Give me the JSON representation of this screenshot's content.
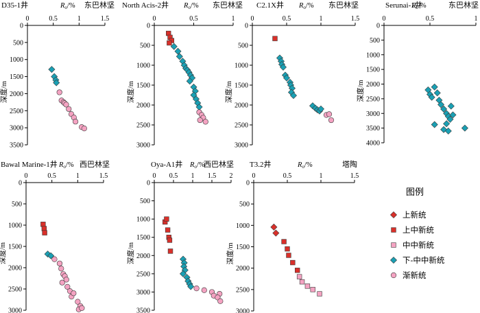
{
  "figure": {
    "depth_label": "深度/m",
    "ro_label": "R",
    "ro_sub": "o",
    "ro_unit": "/%"
  },
  "series_styles": [
    {
      "name": "上新统",
      "marker": "diamond",
      "color": "#d9302a"
    },
    {
      "name": "上中新统",
      "marker": "square",
      "color": "#d9302a"
    },
    {
      "name": "中中新统",
      "marker": "square",
      "color": "#f4a3c2"
    },
    {
      "name": "下-中中新统",
      "marker": "diamond",
      "color": "#1aa0b4"
    },
    {
      "name": "渐新统",
      "marker": "circle",
      "color": "#f4a3c2"
    }
  ],
  "legend": {
    "title": "图例",
    "items": [
      "上新统",
      "上中新统",
      "中中新统",
      "下-中中新统",
      "渐新统"
    ]
  },
  "chart_data": [
    {
      "type": "scatter",
      "title": "D35-1井",
      "region": "东巴林坚",
      "xlabel": "Ro/%",
      "ylabel": "深度/m",
      "xlim": [
        0,
        1.5
      ],
      "x_ticks": [
        "0",
        "0.5",
        "1",
        "1.5"
      ],
      "ylim": [
        0,
        3500
      ],
      "y_ticks": [
        "0",
        "500",
        "1000",
        "1500",
        "2000",
        "2500",
        "3000",
        "3500"
      ],
      "series": [
        {
          "name": "下-中中新统",
          "points": [
            [
              0.47,
              1290
            ],
            [
              0.52,
              1500
            ],
            [
              0.55,
              1600
            ],
            [
              0.56,
              1680
            ]
          ]
        },
        {
          "name": "渐新统",
          "points": [
            [
              0.62,
              1960
            ],
            [
              0.66,
              2200
            ],
            [
              0.7,
              2250
            ],
            [
              0.72,
              2280
            ],
            [
              0.75,
              2320
            ],
            [
              0.8,
              2450
            ],
            [
              0.85,
              2600
            ],
            [
              0.9,
              2700
            ],
            [
              0.93,
              2820
            ],
            [
              1.05,
              2980
            ],
            [
              1.1,
              3020
            ]
          ]
        }
      ]
    },
    {
      "type": "scatter",
      "title": "North Acis-2井",
      "region": "东巴林坚",
      "xlabel": "Ro/%",
      "ylabel": "深度/m",
      "xlim": [
        0,
        1
      ],
      "x_ticks": [
        "0",
        "0.5",
        "1"
      ],
      "ylim": [
        0,
        3000
      ],
      "y_ticks": [
        "0",
        "500",
        "1000",
        "1500",
        "2000",
        "2500",
        "3000"
      ],
      "series": [
        {
          "name": "上中新统",
          "points": [
            [
              0.18,
              200
            ],
            [
              0.2,
              300
            ],
            [
              0.22,
              380
            ],
            [
              0.19,
              440
            ]
          ]
        },
        {
          "name": "下-中中新统",
          "points": [
            [
              0.25,
              530
            ],
            [
              0.3,
              650
            ],
            [
              0.32,
              780
            ],
            [
              0.36,
              900
            ],
            [
              0.38,
              1000
            ],
            [
              0.4,
              1080
            ],
            [
              0.42,
              1120
            ],
            [
              0.44,
              1180
            ],
            [
              0.46,
              1250
            ],
            [
              0.48,
              1320
            ],
            [
              0.45,
              1400
            ],
            [
              0.5,
              1550
            ],
            [
              0.52,
              1650
            ],
            [
              0.5,
              1750
            ],
            [
              0.53,
              1850
            ],
            [
              0.55,
              1950
            ],
            [
              0.57,
              2050
            ]
          ]
        },
        {
          "name": "渐新统",
          "points": [
            [
              0.57,
              2180
            ],
            [
              0.6,
              2250
            ],
            [
              0.62,
              2320
            ],
            [
              0.58,
              2380
            ],
            [
              0.65,
              2420
            ]
          ]
        }
      ]
    },
    {
      "type": "scatter",
      "title": "C2.1X井",
      "region": "东巴林坚",
      "xlabel": "Ro/%",
      "ylabel": "深度/m",
      "xlim": [
        0,
        1.5
      ],
      "x_ticks": [
        "0",
        "0.5",
        "1",
        "1.5"
      ],
      "ylim": [
        0,
        3000
      ],
      "y_ticks": [
        "0",
        "500",
        "1000",
        "1500",
        "2000",
        "2500",
        "3000"
      ],
      "series": [
        {
          "name": "上中新统",
          "points": [
            [
              0.33,
              330
            ]
          ]
        },
        {
          "name": "下-中中新统",
          "points": [
            [
              0.4,
              820
            ],
            [
              0.42,
              900
            ],
            [
              0.43,
              980
            ],
            [
              0.45,
              1050
            ],
            [
              0.48,
              1250
            ],
            [
              0.5,
              1320
            ],
            [
              0.55,
              1430
            ],
            [
              0.56,
              1500
            ],
            [
              0.58,
              1580
            ],
            [
              0.57,
              1680
            ],
            [
              0.6,
              1760
            ],
            [
              0.88,
              2020
            ],
            [
              0.92,
              2080
            ],
            [
              0.95,
              2120
            ],
            [
              0.98,
              2150
            ],
            [
              1.0,
              2100
            ]
          ]
        },
        {
          "name": "渐新统",
          "points": [
            [
              1.08,
              2250
            ],
            [
              1.12,
              2230
            ],
            [
              1.15,
              2380
            ]
          ]
        }
      ]
    },
    {
      "type": "scatter",
      "title": "Serunai-1井",
      "region": "东巴林坚",
      "xlabel": "Ro/%",
      "ylabel": "深度/m",
      "xlim": [
        0,
        1
      ],
      "x_ticks": [
        "0",
        "0.5",
        "1"
      ],
      "ylim": [
        0,
        4000
      ],
      "y_ticks": [
        "0",
        "500",
        "1000",
        "1500",
        "2000",
        "2500",
        "3000",
        "3500",
        "4000"
      ],
      "series": [
        {
          "name": "下-中中新统",
          "points": [
            [
              0.48,
              2200
            ],
            [
              0.5,
              2350
            ],
            [
              0.52,
              2450
            ],
            [
              0.55,
              2100
            ],
            [
              0.58,
              2300
            ],
            [
              0.6,
              2550
            ],
            [
              0.62,
              2700
            ],
            [
              0.65,
              2850
            ],
            [
              0.68,
              3000
            ],
            [
              0.7,
              3100
            ],
            [
              0.72,
              3200
            ],
            [
              0.68,
              3350
            ],
            [
              0.75,
              3050
            ],
            [
              0.73,
              2750
            ],
            [
              0.55,
              3380
            ],
            [
              0.65,
              3550
            ],
            [
              0.7,
              3600
            ],
            [
              0.88,
              3500
            ]
          ]
        }
      ]
    },
    {
      "type": "scatter",
      "title": "Bawal Marine-1井",
      "region": "西巴林坚",
      "xlabel": "Ro/%",
      "ylabel": "深度/m",
      "xlim": [
        0,
        1.5
      ],
      "x_ticks": [
        "0",
        "0.5",
        "1",
        "1.5"
      ],
      "ylim": [
        0,
        3000
      ],
      "y_ticks": [
        "0",
        "500",
        "1000",
        "1500",
        "2000",
        "2500",
        "3000"
      ],
      "series": [
        {
          "name": "上中新统",
          "points": [
            [
              0.33,
              980
            ],
            [
              0.35,
              1080
            ],
            [
              0.36,
              1180
            ]
          ]
        },
        {
          "name": "下-中中新统",
          "points": [
            [
              0.42,
              1680
            ],
            [
              0.48,
              1720
            ]
          ]
        },
        {
          "name": "渐新统",
          "points": [
            [
              0.55,
              1800
            ],
            [
              0.65,
              1900
            ],
            [
              0.68,
              2020
            ],
            [
              0.72,
              2150
            ],
            [
              0.75,
              2200
            ],
            [
              0.7,
              2350
            ],
            [
              0.78,
              2280
            ],
            [
              0.8,
              2450
            ],
            [
              0.85,
              2550
            ],
            [
              0.88,
              2680
            ],
            [
              0.92,
              2600
            ],
            [
              1.0,
              2800
            ],
            [
              1.05,
              2900
            ],
            [
              1.02,
              2980
            ],
            [
              1.08,
              2950
            ]
          ]
        }
      ]
    },
    {
      "type": "scatter",
      "title": "Oya-A1井",
      "region": "西巴林坚",
      "xlabel": "Ro/%",
      "ylabel": "深度/m",
      "xlim": [
        0,
        2
      ],
      "x_ticks": [
        "0",
        "0.5",
        "1",
        "1.5",
        "2"
      ],
      "ylim": [
        0,
        3500
      ],
      "y_ticks": [
        "0",
        "500",
        "1000",
        "1500",
        "2000",
        "2500",
        "3000",
        "3500"
      ],
      "series": [
        {
          "name": "上中新统",
          "points": [
            [
              0.28,
              1080
            ],
            [
              0.32,
              1000
            ],
            [
              0.35,
              1300
            ],
            [
              0.38,
              1500
            ],
            [
              0.4,
              1580
            ],
            [
              0.42,
              1880
            ]
          ]
        },
        {
          "name": "下-中中新统",
          "points": [
            [
              0.75,
              2100
            ],
            [
              0.78,
              2200
            ],
            [
              0.77,
              2300
            ],
            [
              0.8,
              2400
            ],
            [
              0.75,
              2500
            ],
            [
              0.85,
              2600
            ],
            [
              0.88,
              2700
            ],
            [
              0.92,
              2780
            ],
            [
              0.95,
              2850
            ]
          ]
        },
        {
          "name": "渐新统",
          "points": [
            [
              1.1,
              2900
            ],
            [
              1.3,
              2950
            ],
            [
              1.5,
              3000
            ],
            [
              1.55,
              3100
            ],
            [
              1.7,
              3050
            ],
            [
              1.65,
              3150
            ],
            [
              1.72,
              3250
            ]
          ]
        }
      ]
    },
    {
      "type": "scatter",
      "title": "T3.2井",
      "region": "塔陶",
      "xlabel": "Ro/%",
      "ylabel": "深度/m",
      "xlim": [
        0,
        1.5
      ],
      "x_ticks": [
        "0",
        "0.5",
        "1",
        "1.5"
      ],
      "ylim": [
        0,
        3000
      ],
      "y_ticks": [
        "0",
        "500",
        "1000",
        "1500",
        "2000",
        "2500",
        "3000"
      ],
      "series": [
        {
          "name": "上新统",
          "points": [
            [
              0.3,
              1040
            ],
            [
              0.33,
              1180
            ]
          ]
        },
        {
          "name": "上中新统",
          "points": [
            [
              0.45,
              1380
            ],
            [
              0.5,
              1550
            ],
            [
              0.52,
              1700
            ],
            [
              0.58,
              1870
            ],
            [
              0.65,
              2050
            ]
          ]
        },
        {
          "name": "中中新统",
          "points": [
            [
              0.68,
              2200
            ],
            [
              0.72,
              2320
            ],
            [
              0.8,
              2420
            ],
            [
              0.88,
              2500
            ],
            [
              0.98,
              2600
            ]
          ]
        }
      ]
    }
  ]
}
